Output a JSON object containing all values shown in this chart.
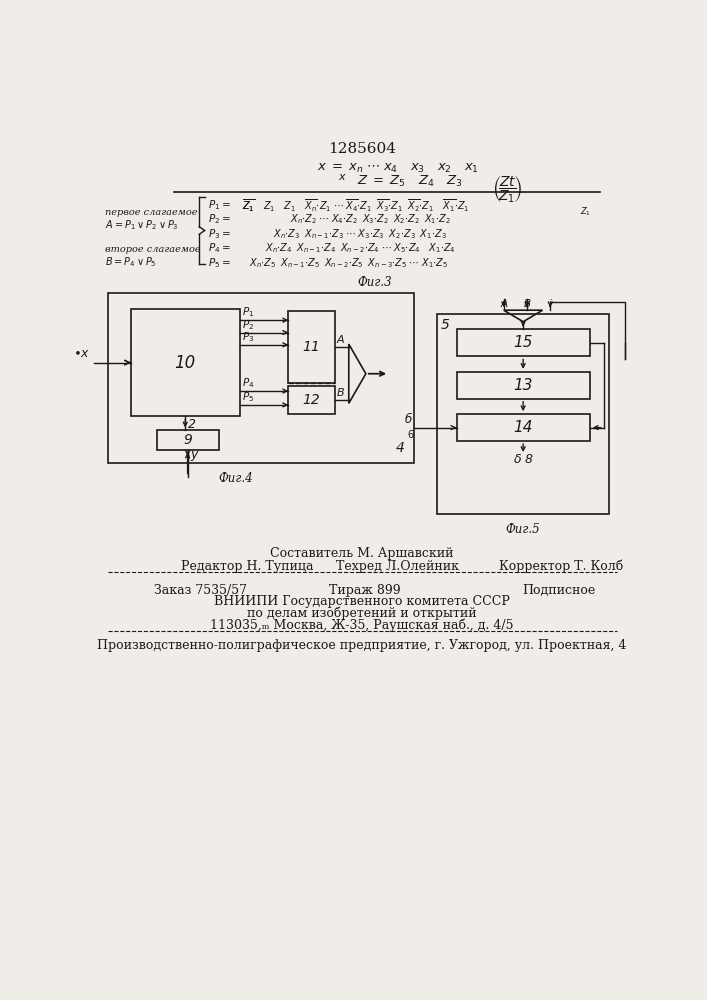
{
  "patent_number": "1285604",
  "bg_color": "#f0ede8",
  "text_color": "#1a1a1a",
  "staff_line1": "Составитель М. Аршавский",
  "staff_line2": "Редактор Н. Тупица",
  "staff_line3": "Техред Л.Олейник",
  "staff_line4": "Корректор Т. Колб",
  "order_text": "Заказ 7535/57",
  "tirazh_text": "Тираж 899",
  "podpisnoe_text": "Подписное",
  "vnipi_line1": "ВНИИПИ Государственного комитета СССР",
  "vnipi_line2": "по делам изобретений и открытий",
  "vnipi_line3": "113035,ₘ Москва, Ж-35, Раушская наб., д. 4/5",
  "production_line": "Производственно-полиграфическое предприятие, г. Ужгород, ул. Проектная, 4"
}
